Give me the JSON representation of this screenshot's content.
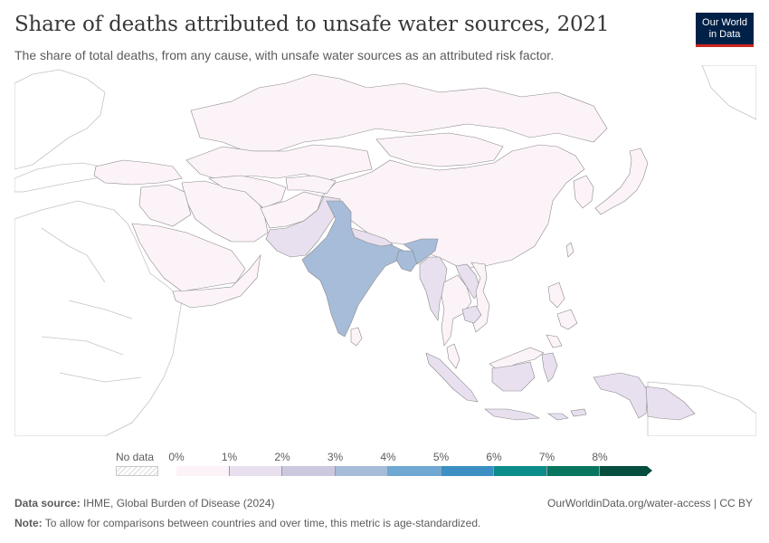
{
  "header": {
    "title": "Share of deaths attributed to unsafe water sources, 2021",
    "subtitle": "The share of total deaths, from any cause, with unsafe water sources as an attributed risk factor."
  },
  "logo": {
    "line1": "Our World",
    "line2": "in Data",
    "bg_color": "#002147",
    "accent_color": "#ce261e"
  },
  "legend": {
    "no_data_label": "No data",
    "ticks": [
      "0%",
      "1%",
      "2%",
      "3%",
      "4%",
      "5%",
      "6%",
      "7%",
      "8%"
    ],
    "colors": [
      "#fcf3f8",
      "#e8e0ef",
      "#ccc8e0",
      "#a6bcd9",
      "#6fa9d3",
      "#3c8fc2",
      "#0d8c8c",
      "#087560",
      "#054d3c"
    ]
  },
  "map": {
    "countries": [
      {
        "name": "India",
        "bin": 3
      },
      {
        "name": "Pakistan",
        "bin": 1
      },
      {
        "name": "Bangladesh",
        "bin": 3
      },
      {
        "name": "Nepal",
        "bin": 1
      },
      {
        "name": "Myanmar",
        "bin": 1
      },
      {
        "name": "Laos",
        "bin": 1
      },
      {
        "name": "Cambodia",
        "bin": 1
      },
      {
        "name": "Indonesia",
        "bin": 1
      },
      {
        "name": "Papua New Guinea",
        "bin": 1
      },
      {
        "name": "China",
        "bin": 0
      },
      {
        "name": "Russia",
        "bin": 0
      },
      {
        "name": "Mongolia",
        "bin": 0
      },
      {
        "name": "Kazakhstan",
        "bin": 0
      },
      {
        "name": "Iran",
        "bin": 0
      },
      {
        "name": "Afghanistan",
        "bin": 0
      },
      {
        "name": "Saudi Arabia",
        "bin": 0
      },
      {
        "name": "Turkey",
        "bin": 0
      },
      {
        "name": "Japan",
        "bin": 0
      },
      {
        "name": "Thailand",
        "bin": 0
      },
      {
        "name": "Vietnam",
        "bin": 0
      },
      {
        "name": "Philippines",
        "bin": 0
      },
      {
        "name": "Malaysia",
        "bin": 0
      },
      {
        "name": "Sri Lanka",
        "bin": 0
      }
    ]
  },
  "footer": {
    "source_label": "Data source:",
    "source_text": "IHME, Global Burden of Disease (2024)",
    "credit": "OurWorldinData.org/water-access | CC BY",
    "note_label": "Note:",
    "note_text": "To allow for comparisons between countries and over time, this metric is age-standardized."
  }
}
